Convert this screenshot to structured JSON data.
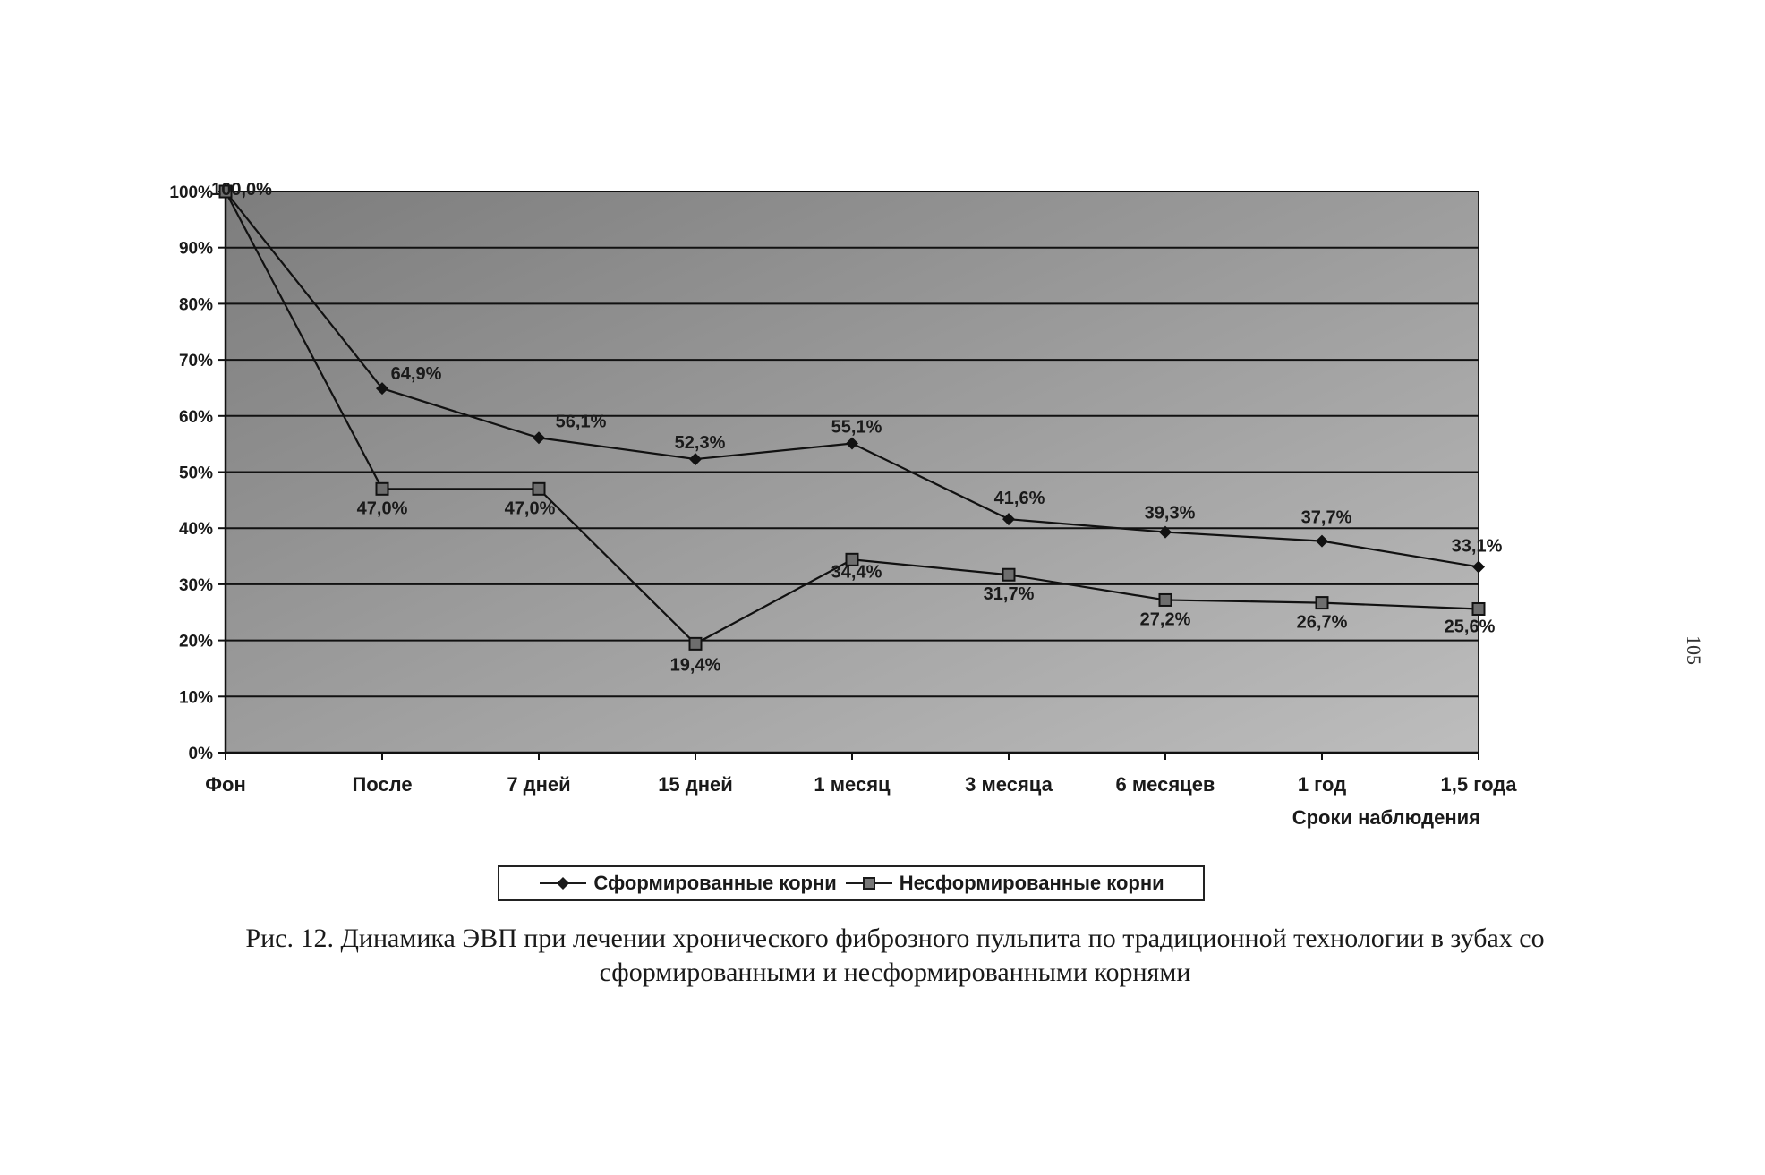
{
  "chart_data": {
    "type": "line",
    "categories": [
      "Фон",
      "После",
      "7 дней",
      "15 дней",
      "1 месяц",
      "3 месяца",
      "6 месяцев",
      "1 год",
      "1,5 года"
    ],
    "series": [
      {
        "name": "Сформированные корни",
        "values": [
          100,
          64.9,
          56.1,
          52.3,
          55.1,
          41.6,
          39.3,
          37.7,
          33.1
        ],
        "labels": [
          "100,0%",
          "64,9%",
          "56,1%",
          "52,3%",
          "55,1%",
          "41,6%",
          "39,3%",
          "37,7%",
          "33,1%"
        ],
        "marker": "diamond"
      },
      {
        "name": "Несформированные корни",
        "values": [
          100,
          47.0,
          47.0,
          19.4,
          34.4,
          31.7,
          27.2,
          26.7,
          25.6
        ],
        "labels": [
          "",
          "47,0%",
          "47,0%",
          "19,4%",
          "34,4%",
          "31,7%",
          "27,2%",
          "26,7%",
          "25,6%"
        ],
        "marker": "square"
      }
    ],
    "yticks": [
      "0%",
      "10%",
      "20%",
      "30%",
      "40%",
      "50%",
      "60%",
      "70%",
      "80%",
      "90%",
      "100%"
    ],
    "ylim": [
      0,
      100
    ],
    "xlabel": "Сроки наблюдения",
    "ylabel": "",
    "grid": true,
    "legend_position": "bottom"
  },
  "caption": {
    "line1": "Рис. 12. Динамика ЭВП при лечении хронического фиброзного пульпита по традиционной технологии в зубах со",
    "line2": "сформированными и несформированными корнями"
  },
  "page_number": "105"
}
